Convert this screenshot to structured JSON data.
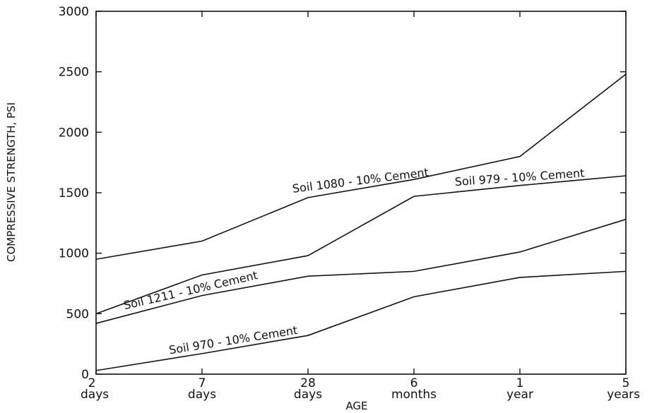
{
  "chart_data": {
    "type": "line",
    "xlabel": "AGE",
    "ylabel": "COMPRESSIVE STRENGTH, PSI",
    "ylim": [
      0,
      3000
    ],
    "yticks": [
      0,
      500,
      1000,
      1500,
      2000,
      2500,
      3000
    ],
    "categories": [
      {
        "top": "2",
        "bottom": "days"
      },
      {
        "top": "7",
        "bottom": "days"
      },
      {
        "top": "28",
        "bottom": "days"
      },
      {
        "top": "6",
        "bottom": "months"
      },
      {
        "top": "1",
        "bottom": "year"
      },
      {
        "top": "5",
        "bottom": "years"
      }
    ],
    "grid": false,
    "legend": "none",
    "series": [
      {
        "name": "Soil 1080 - 10% Cement",
        "values": [
          950,
          1100,
          1460,
          1610,
          1800,
          2480
        ],
        "label_at": 2.5,
        "label_offset": 290,
        "label_angle": -7
      },
      {
        "name": "Soil 979 - 10% Cement",
        "values": [
          500,
          820,
          980,
          1470,
          1560,
          1640
        ],
        "label_at": 4.0,
        "label_offset": 90,
        "label_angle": -4
      },
      {
        "name": "Soil 1211 - 10% Cement",
        "values": [
          420,
          650,
          810,
          850,
          1010,
          1280
        ],
        "label_at": 0.9,
        "label_offset": -220,
        "label_angle": -13
      },
      {
        "name": "Soil 970 - 10% Cement",
        "values": [
          30,
          170,
          320,
          640,
          800,
          850
        ],
        "label_at": 1.3,
        "label_offset": 150,
        "label_angle": -9
      }
    ]
  }
}
